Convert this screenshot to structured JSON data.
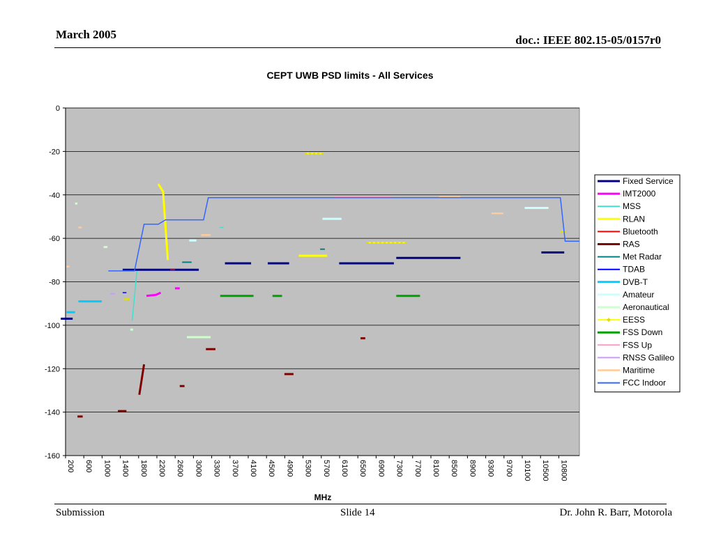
{
  "slide": {
    "header_left": "March 2005",
    "header_right": "doc.: IEEE 802.15-05/0157r0",
    "footer_left": "Submission",
    "footer_center": "Slide 14",
    "footer_right": "Dr. John R. Barr, Motorola"
  },
  "chart_data": {
    "type": "line",
    "title": "CEPT UWB PSD limits - All Services",
    "xlabel": "MHz",
    "ylabel": "",
    "xlim": [
      200,
      11000
    ],
    "ylim": [
      -160,
      0
    ],
    "y_ticks": [
      0,
      -20,
      -40,
      -60,
      -80,
      -100,
      -120,
      -140,
      -160
    ],
    "x_ticks": [
      "200",
      "600",
      "1000",
      "1400",
      "1800",
      "2200",
      "2600",
      "3000",
      "3300",
      "3700",
      "4100",
      "4500",
      "4900",
      "5300",
      "5700",
      "6100",
      "6500",
      "6900",
      "7300",
      "7700",
      "8100",
      "8500",
      "8900",
      "9300",
      "9700",
      "10100",
      "10500",
      "10800"
    ],
    "grid": true,
    "legend_position": "right",
    "plot_background": "#c0c0c0",
    "series": [
      {
        "name": "Fixed Service",
        "color": "#000080",
        "width": 3,
        "segments": [
          [
            [
              1400,
              -74.5
            ],
            [
              3000,
              -74.5
            ]
          ],
          [
            [
              3550,
              -71.5
            ],
            [
              4100,
              -71.5
            ]
          ],
          [
            [
              4450,
              -71.5
            ],
            [
              4900,
              -71.5
            ]
          ],
          [
            [
              5950,
              -71.5
            ],
            [
              7100,
              -71.5
            ]
          ],
          [
            [
              7150,
              -69
            ],
            [
              8500,
              -69
            ]
          ],
          [
            [
              10200,
              -66.5
            ],
            [
              10680,
              -66.5
            ]
          ],
          [
            [
              100,
              -97
            ],
            [
              350,
              -97
            ]
          ]
        ]
      },
      {
        "name": "IMT2000",
        "color": "#ff00ff",
        "width": 3,
        "segments": [
          [
            [
              1900,
              -86.5
            ],
            [
              2100,
              -86
            ],
            [
              2200,
              -85
            ]
          ],
          [
            [
              2500,
              -83
            ],
            [
              2600,
              -83
            ]
          ]
        ]
      },
      {
        "name": "MSS",
        "color": "#40e0d0",
        "width": 1.5,
        "segments": [
          [
            [
              1600,
              -98
            ],
            [
              1700,
              -75
            ]
          ],
          [
            [
              3440,
              -55
            ],
            [
              3520,
              -55
            ]
          ]
        ]
      },
      {
        "name": "RLAN",
        "color": "#ffff00",
        "width": 3,
        "segments": [
          [
            [
              2150,
              -35
            ],
            [
              2250,
              -38.5
            ],
            [
              2350,
              -70
            ]
          ],
          [
            [
              5100,
              -68
            ],
            [
              5700,
              -68
            ]
          ]
        ]
      },
      {
        "name": "Bluetooth",
        "color": "#ff0000",
        "width": 1.5,
        "segments": [
          [
            [
              2400,
              -74.5
            ],
            [
              2500,
              -74.5
            ]
          ]
        ]
      },
      {
        "name": "RAS",
        "color": "#800000",
        "width": 3,
        "segments": [
          [
            [
              1750,
              -132
            ],
            [
              1850,
              -118
            ]
          ],
          [
            [
              450,
              -142
            ],
            [
              560,
              -142
            ]
          ],
          [
            [
              1300,
              -139.5
            ],
            [
              1480,
              -139.5
            ]
          ],
          [
            [
              2600,
              -128
            ],
            [
              2700,
              -128
            ]
          ],
          [
            [
              3150,
              -111
            ],
            [
              3350,
              -111
            ]
          ],
          [
            [
              4800,
              -122.5
            ],
            [
              4990,
              -122.5
            ]
          ],
          [
            [
              6400,
              -106
            ],
            [
              6500,
              -106
            ]
          ]
        ]
      },
      {
        "name": "Met Radar",
        "color": "#008080",
        "width": 2,
        "segments": [
          [
            [
              2650,
              -71
            ],
            [
              2850,
              -71
            ]
          ],
          [
            [
              5550,
              -65
            ],
            [
              5650,
              -65
            ]
          ]
        ]
      },
      {
        "name": "TDAB",
        "color": "#0000ff",
        "width": 1.5,
        "segments": [
          [
            [
              1400,
              -85
            ],
            [
              1480,
              -85
            ]
          ]
        ]
      },
      {
        "name": "DVB-T",
        "color": "#00ccff",
        "width": 3,
        "segments": [
          [
            [
              220,
              -94
            ],
            [
              400,
              -94
            ]
          ],
          [
            [
              470,
              -89
            ],
            [
              960,
              -89
            ]
          ]
        ]
      },
      {
        "name": "Amateur",
        "color": "#ccffff",
        "width": 3,
        "segments": [
          [
            [
              5600,
              -51
            ],
            [
              6000,
              -51
            ]
          ],
          [
            [
              9850,
              -46
            ],
            [
              10350,
              -46
            ]
          ],
          [
            [
              2800,
              -61
            ],
            [
              2950,
              -61
            ]
          ]
        ]
      },
      {
        "name": "Aeronautical",
        "color": "#ccffcc",
        "width": 3,
        "segments": [
          [
            [
              2750,
              -105.5
            ],
            [
              3250,
              -105.5
            ]
          ],
          [
            [
              400,
              -44
            ],
            [
              450,
              -44
            ]
          ],
          [
            [
              1000,
              -64
            ],
            [
              1080,
              -64
            ]
          ],
          [
            [
              1560,
              -102
            ],
            [
              1620,
              -102
            ]
          ]
        ]
      },
      {
        "name": "EESS",
        "color": "#ffff00",
        "width": 2,
        "marker": "diamond",
        "segments": [
          [
            [
              5250,
              -21
            ],
            [
              5600,
              -21
            ]
          ],
          [
            [
              6550,
              -62
            ],
            [
              7350,
              -62
            ]
          ],
          [
            [
              1450,
              -88
            ],
            [
              1520,
              -88
            ]
          ],
          [
            [
              10620,
              -57
            ],
            [
              10690,
              -57
            ]
          ]
        ]
      },
      {
        "name": "FSS Down",
        "color": "#00a000",
        "width": 3,
        "segments": [
          [
            [
              3450,
              -86.5
            ],
            [
              4150,
              -86.5
            ]
          ],
          [
            [
              4550,
              -86.5
            ],
            [
              4750,
              -86.5
            ]
          ],
          [
            [
              7150,
              -86.5
            ],
            [
              7650,
              -86.5
            ]
          ]
        ]
      },
      {
        "name": "FSS Up",
        "color": "#ff99cc",
        "width": 1.5,
        "segments": [
          [
            [
              5850,
              -41
            ],
            [
              7050,
              -41
            ]
          ]
        ]
      },
      {
        "name": "RNSS Galileo",
        "color": "#cc99ff",
        "width": 2,
        "segments": [
          [
            [
              1140,
              -85.5
            ],
            [
              1240,
              -85.5
            ]
          ]
        ]
      },
      {
        "name": "Maritime",
        "color": "#ffcc99",
        "width": 2.5,
        "segments": [
          [
            [
              3050,
              -58.5
            ],
            [
              3250,
              -58.5
            ]
          ],
          [
            [
              8050,
              -41
            ],
            [
              8500,
              -41
            ]
          ],
          [
            [
              9150,
              -48.5
            ],
            [
              9400,
              -48.5
            ]
          ],
          [
            [
              470,
              -55
            ],
            [
              540,
              -55
            ]
          ],
          [
            [
              220,
              -73
            ],
            [
              280,
              -73
            ]
          ]
        ]
      },
      {
        "name": "FCC Indoor",
        "color": "#3366ff",
        "width": 1.5,
        "segments": [
          [
            [
              1100,
              -75
            ],
            [
              1650,
              -75
            ],
            [
              1850,
              -53.5
            ],
            [
              2150,
              -53.5
            ],
            [
              2300,
              -51.5
            ],
            [
              3100,
              -51.5
            ],
            [
              3200,
              -41.3
            ],
            [
              10600,
              -41.3
            ],
            [
              10700,
              -61.3
            ],
            [
              11000,
              -61.3
            ]
          ]
        ]
      }
    ]
  }
}
